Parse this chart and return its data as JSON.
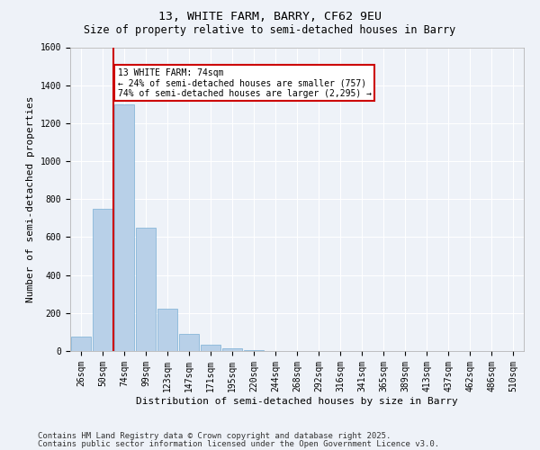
{
  "title_line1": "13, WHITE FARM, BARRY, CF62 9EU",
  "title_line2": "Size of property relative to semi-detached houses in Barry",
  "xlabel": "Distribution of semi-detached houses by size in Barry",
  "ylabel": "Number of semi-detached properties",
  "categories": [
    "26sqm",
    "50sqm",
    "74sqm",
    "99sqm",
    "123sqm",
    "147sqm",
    "171sqm",
    "195sqm",
    "220sqm",
    "244sqm",
    "268sqm",
    "292sqm",
    "316sqm",
    "341sqm",
    "365sqm",
    "389sqm",
    "413sqm",
    "437sqm",
    "462sqm",
    "486sqm",
    "510sqm"
  ],
  "values": [
    75,
    750,
    1300,
    650,
    225,
    90,
    35,
    15,
    5,
    2,
    0,
    0,
    0,
    0,
    0,
    0,
    0,
    0,
    0,
    0,
    0
  ],
  "bar_color": "#b8d0e8",
  "bar_edgecolor": "#7aafd4",
  "vline_x_index": 2,
  "vline_color": "#cc0000",
  "annotation_text": "13 WHITE FARM: 74sqm\n← 24% of semi-detached houses are smaller (757)\n74% of semi-detached houses are larger (2,295) →",
  "annotation_box_color": "#cc0000",
  "ylim": [
    0,
    1600
  ],
  "yticks": [
    0,
    200,
    400,
    600,
    800,
    1000,
    1200,
    1400,
    1600
  ],
  "footnote1": "Contains HM Land Registry data © Crown copyright and database right 2025.",
  "footnote2": "Contains public sector information licensed under the Open Government Licence v3.0.",
  "background_color": "#eef2f8",
  "grid_color": "#ffffff",
  "title_fontsize": 9.5,
  "subtitle_fontsize": 8.5,
  "axis_label_fontsize": 8,
  "tick_fontsize": 7,
  "footnote_fontsize": 6.5
}
